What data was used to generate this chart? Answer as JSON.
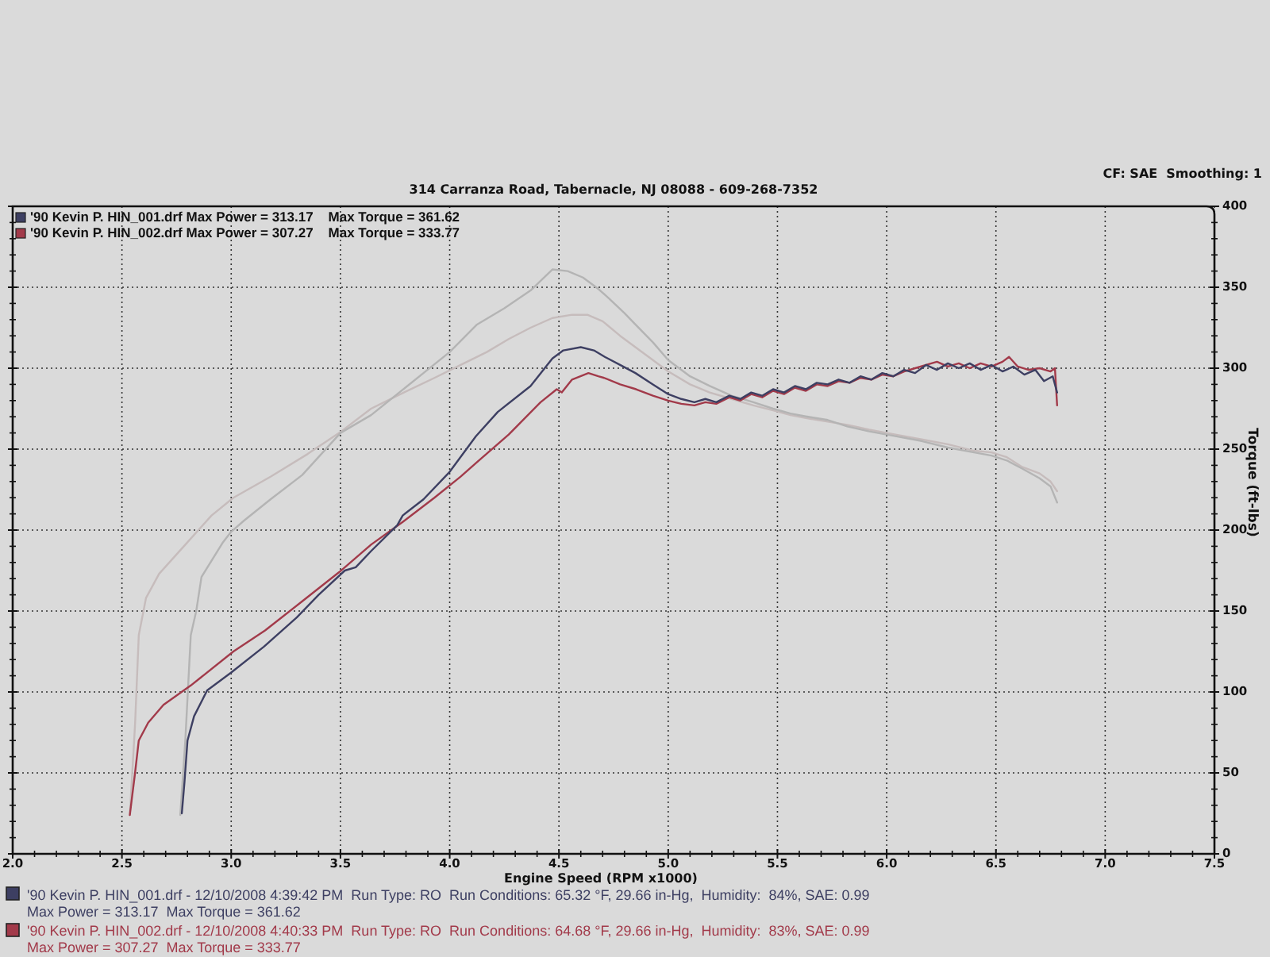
{
  "chart_data": {
    "type": "line",
    "title": "314 Carranza Road, Tabernacle, NJ 08088 - 609-268-7352",
    "xlabel": "Engine Speed (RPM x1000)",
    "ylabel": "Torque (ft-lbs)",
    "xlim": [
      2.0,
      7.5
    ],
    "xticks": [
      {
        "value": 2.0,
        "label": "2.0"
      },
      2.5,
      {
        "value": 3.0,
        "label": "3.0"
      },
      3.5,
      {
        "value": 4.0,
        "label": "4.0"
      },
      4.5,
      {
        "value": 5.0,
        "label": "5.0"
      },
      5.5,
      {
        "value": 6.0,
        "label": "6.0"
      },
      6.5,
      {
        "value": 7.0,
        "label": "7.0"
      },
      7.5
    ],
    "ylim": [
      0,
      400
    ],
    "yticks": [
      0,
      50,
      100,
      150,
      200,
      250,
      300,
      350,
      400
    ],
    "grid": true,
    "legend": "top left",
    "annotations": [
      "CF: SAE  Smoothing: 1",
      "'90 Kevin P. HIN_001.drf - 12/10/2008 4:39:42 PM  Run Type: RO  Run Conditions: 65.32 °F, 29.66 in-Hg,  Humidity:  84%, SAE: 0.99",
      "Max Power = 313.17  Max Torque = 361.62",
      "'90 Kevin P. HIN_002.drf - 12/10/2008 4:40:33 PM  Run Type: RO  Run Conditions: 64.68 °F, 29.66 in-Hg,  Humidity:  83%, SAE: 0.99",
      "Max Power = 307.27  Max Torque = 333.77"
    ],
    "series": [
      {
        "name": "'90 Kevin P. HIN_001.drf Max Power = 313.17    Max Torque = 361.62",
        "color": "#3d3f62",
        "x": [
          2.774,
          2.786,
          2.8,
          2.83,
          2.89,
          3.0,
          3.15,
          3.3,
          3.4,
          3.52,
          3.57,
          3.64,
          3.76,
          3.785,
          3.88,
          4.0,
          4.12,
          4.22,
          4.37,
          4.47,
          4.52,
          4.6,
          4.66,
          4.71,
          4.78,
          4.85,
          4.93,
          5.0,
          5.06,
          5.12,
          5.17,
          5.22,
          5.28,
          5.33,
          5.38,
          5.43,
          5.48,
          5.53,
          5.58,
          5.63,
          5.68,
          5.73,
          5.78,
          5.83,
          5.88,
          5.93,
          5.98,
          6.03,
          6.08,
          6.13,
          6.18,
          6.23,
          6.28,
          6.33,
          6.38,
          6.43,
          6.48,
          6.53,
          6.58,
          6.63,
          6.68,
          6.72,
          6.76,
          6.78
        ],
        "values": [
          25,
          44,
          70,
          85,
          101,
          112,
          128,
          146,
          160,
          175,
          177,
          187,
          203,
          209,
          219,
          236,
          258,
          273,
          289,
          306,
          311,
          313,
          311,
          307,
          302,
          297,
          290,
          284,
          281,
          279,
          281,
          279,
          283,
          281,
          285,
          283,
          287,
          285,
          289,
          287,
          291,
          290,
          293,
          291,
          295,
          293,
          297,
          295,
          299,
          297,
          302,
          299,
          303,
          300,
          303,
          299,
          302,
          298,
          301,
          296,
          299,
          292,
          295,
          285
        ]
      },
      {
        "name": "'90 Kevin P. HIN_002.drf Max Power = 307.27    Max Torque = 333.77",
        "color": "#a23a4a",
        "x": [
          2.536,
          2.56,
          2.577,
          2.62,
          2.69,
          2.815,
          3.01,
          3.155,
          3.325,
          3.494,
          3.64,
          3.785,
          3.93,
          4.05,
          4.125,
          4.27,
          4.416,
          4.49,
          4.513,
          4.56,
          4.635,
          4.68,
          4.707,
          4.78,
          4.853,
          4.93,
          5.0,
          5.06,
          5.12,
          5.17,
          5.22,
          5.28,
          5.33,
          5.38,
          5.43,
          5.48,
          5.53,
          5.58,
          5.63,
          5.68,
          5.73,
          5.78,
          5.83,
          5.88,
          5.93,
          5.98,
          6.03,
          6.08,
          6.13,
          6.18,
          6.23,
          6.28,
          6.33,
          6.38,
          6.43,
          6.48,
          6.53,
          6.56,
          6.6,
          6.65,
          6.7,
          6.75,
          6.77,
          6.78
        ],
        "values": [
          24,
          50,
          70,
          81,
          92,
          104,
          125,
          138,
          156,
          174,
          191,
          205,
          220,
          233,
          242,
          259,
          279,
          287,
          285,
          293,
          297,
          295,
          294,
          290,
          287,
          283,
          280,
          278,
          277,
          279,
          278,
          282,
          280,
          284,
          282,
          286,
          284,
          288,
          286,
          290,
          289,
          292,
          291,
          294,
          293,
          296,
          295,
          298,
          300,
          302,
          304,
          301,
          303,
          300,
          303,
          301,
          304,
          307,
          301,
          299,
          300,
          298,
          300,
          277
        ]
      },
      {
        "color": "#b4b4b4",
        "x": [
          2.767,
          2.79,
          2.815,
          2.84,
          2.864,
          2.96,
          3.0,
          3.06,
          3.18,
          3.325,
          3.5,
          3.64,
          3.76,
          3.88,
          4.0,
          4.125,
          4.25,
          4.37,
          4.47,
          4.54,
          4.61,
          4.68,
          4.73,
          4.8,
          4.85,
          4.93,
          5.0,
          5.1,
          5.19,
          5.29,
          5.39,
          5.48,
          5.56,
          5.64,
          5.73,
          5.82,
          5.92,
          6.04,
          6.16,
          6.28,
          6.4,
          6.48,
          6.55,
          6.62,
          6.7,
          6.75,
          6.78
        ],
        "values": [
          24,
          70,
          135,
          150,
          171,
          192,
          199,
          206,
          219,
          234,
          260,
          271,
          284,
          297,
          310,
          327,
          337,
          348,
          361,
          360,
          356,
          349,
          343,
          334,
          327,
          316,
          305,
          295,
          289,
          283,
          279,
          275,
          272,
          270,
          268,
          264,
          261,
          258,
          255,
          251,
          248,
          246,
          243,
          238,
          232,
          227,
          217
        ]
      },
      {
        "color": "#c6bcbc",
        "x": [
          2.536,
          2.56,
          2.577,
          2.61,
          2.67,
          2.79,
          2.91,
          3.01,
          3.18,
          3.35,
          3.494,
          3.64,
          3.79,
          3.93,
          4.05,
          4.17,
          4.27,
          4.37,
          4.47,
          4.56,
          4.63,
          4.7,
          4.78,
          4.85,
          4.93,
          5.0,
          5.1,
          5.19,
          5.29,
          5.39,
          5.48,
          5.56,
          5.64,
          5.73,
          5.82,
          5.92,
          6.04,
          6.16,
          6.28,
          6.4,
          6.48,
          6.55,
          6.62,
          6.7,
          6.75,
          6.78
        ],
        "values": [
          24,
          80,
          135,
          158,
          173,
          191,
          209,
          220,
          233,
          247,
          260,
          275,
          285,
          294,
          302,
          310,
          318,
          325,
          331,
          333,
          333,
          329,
          320,
          313,
          305,
          298,
          290,
          285,
          281,
          277,
          274,
          271,
          269,
          267,
          265,
          262,
          259,
          256,
          253,
          249,
          248,
          245,
          239,
          235,
          230,
          224
        ]
      }
    ]
  }
}
